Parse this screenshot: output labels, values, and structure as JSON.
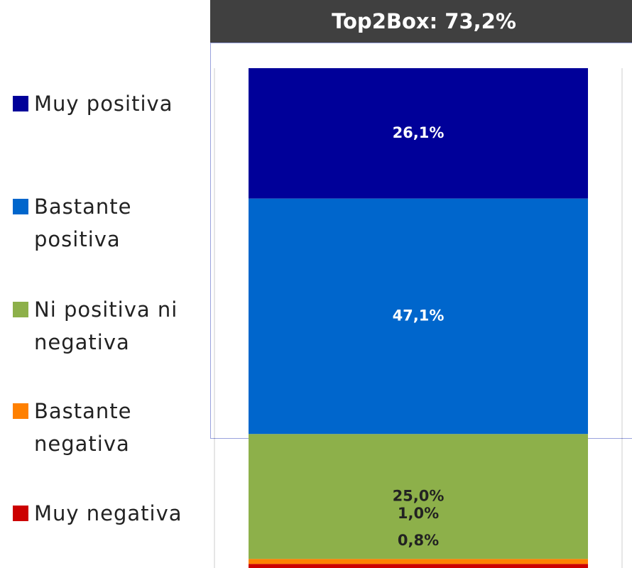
{
  "chart_data": {
    "type": "stacked-bar",
    "title": "Top2Box: 73,2%",
    "ylim": [
      0,
      100
    ],
    "series": [
      {
        "name": "Muy positiva",
        "color": "#000099",
        "values": [
          26.1
        ],
        "value_labels": [
          "26,1%"
        ]
      },
      {
        "name": "Bastante positiva",
        "color": "#0066cc",
        "values": [
          47.1
        ],
        "value_labels": [
          "47,1%"
        ]
      },
      {
        "name": "Ni positiva ni negativa",
        "color": "#8db04a",
        "values": [
          25.0
        ],
        "value_labels": [
          "25,0%"
        ]
      },
      {
        "name": "Bastante negativa",
        "color": "#ff8000",
        "values": [
          1.0
        ],
        "value_labels": [
          "1,0%"
        ]
      },
      {
        "name": "Muy negativa",
        "color": "#cc0000",
        "values": [
          0.8
        ],
        "value_labels": [
          "0,8%"
        ]
      }
    ]
  }
}
